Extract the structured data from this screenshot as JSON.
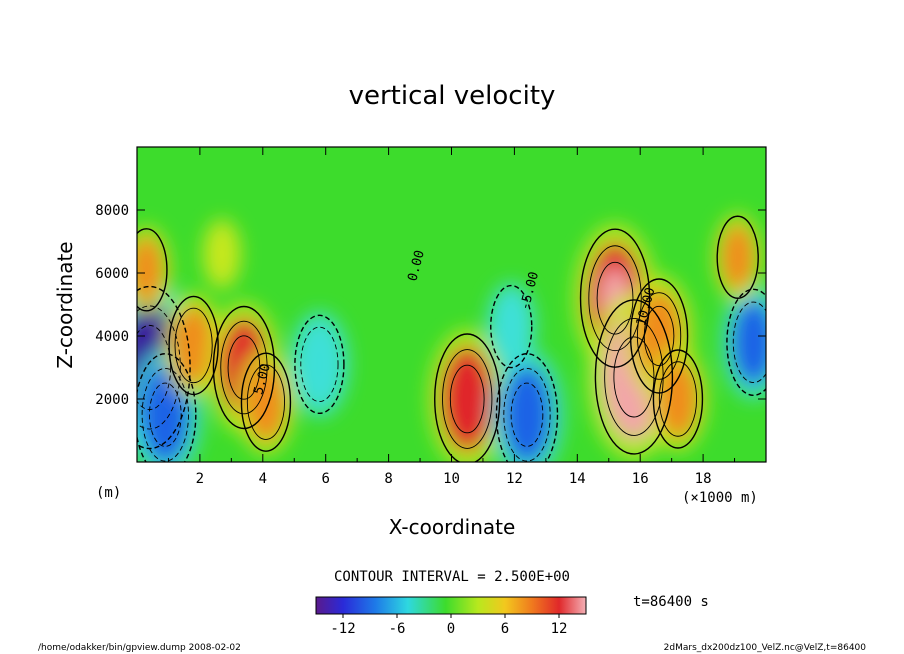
{
  "chart_data": {
    "type": "heatmap",
    "title": "vertical velocity",
    "xlabel": "X-coordinate",
    "ylabel": "Z-coordinate",
    "x_unit_left": "(m)",
    "x_unit_right": "(×1000 m)",
    "xlim": [
      0,
      20
    ],
    "ylim": [
      0,
      10000
    ],
    "x_ticks": [
      2,
      4,
      6,
      8,
      10,
      12,
      14,
      16,
      18
    ],
    "y_ticks": [
      2000,
      4000,
      6000,
      8000
    ],
    "contour_interval_label": "CONTOUR INTERVAL = 2.500E+00",
    "contour_interval": 2.5,
    "contour_labels": [
      {
        "text": "0.00",
        "x": 9.0,
        "y": 6200
      },
      {
        "text": "-5.00",
        "x": 12.6,
        "y": 5400
      },
      {
        "text": "10.00",
        "x": 16.3,
        "y": 4900
      },
      {
        "text": "5.00",
        "x": 4.1,
        "y": 2600
      }
    ],
    "colorbar": {
      "range": [
        -15,
        15
      ],
      "ticks": [
        -12,
        -6,
        0,
        6,
        12
      ]
    },
    "time_label": "t=86400 s",
    "colors": {
      "strong_negative": "#3a1f9c",
      "negative": "#1e64e6",
      "weak_negative": "#3ee0d8",
      "zero": "#3ddc2c",
      "weak_positive": "#c8e81e",
      "positive": "#f08c1e",
      "strong_positive": "#e0282a",
      "extreme_positive": "#f2a6a8"
    },
    "features": [
      {
        "x": 0.4,
        "z": 3000,
        "value": -14
      },
      {
        "x": 0.9,
        "z": 1500,
        "value": -9
      },
      {
        "x": 1.8,
        "z": 3700,
        "value": 6
      },
      {
        "x": 3.4,
        "z": 3000,
        "value": 9
      },
      {
        "x": 4.1,
        "z": 1900,
        "value": 6
      },
      {
        "x": 5.8,
        "z": 3100,
        "value": -6
      },
      {
        "x": 10.5,
        "z": 2000,
        "value": 10
      },
      {
        "x": 12.4,
        "z": 1500,
        "value": -9
      },
      {
        "x": 11.9,
        "z": 4300,
        "value": -4
      },
      {
        "x": 15.2,
        "z": 5200,
        "value": 11
      },
      {
        "x": 15.8,
        "z": 2700,
        "value": 13
      },
      {
        "x": 16.6,
        "z": 4000,
        "value": 8
      },
      {
        "x": 17.2,
        "z": 2000,
        "value": 6
      },
      {
        "x": 19.6,
        "z": 3800,
        "value": -7
      },
      {
        "x": 19.1,
        "z": 6500,
        "value": 4
      },
      {
        "x": 0.3,
        "z": 6100,
        "value": 4
      },
      {
        "x": 2.7,
        "z": 6600,
        "value": 2
      }
    ]
  },
  "footer": {
    "left": "/home/odakker/bin/gpview.dump  2008-02-02",
    "right": "2dMars_dx200dz100_VelZ.nc@VelZ,t=86400"
  }
}
